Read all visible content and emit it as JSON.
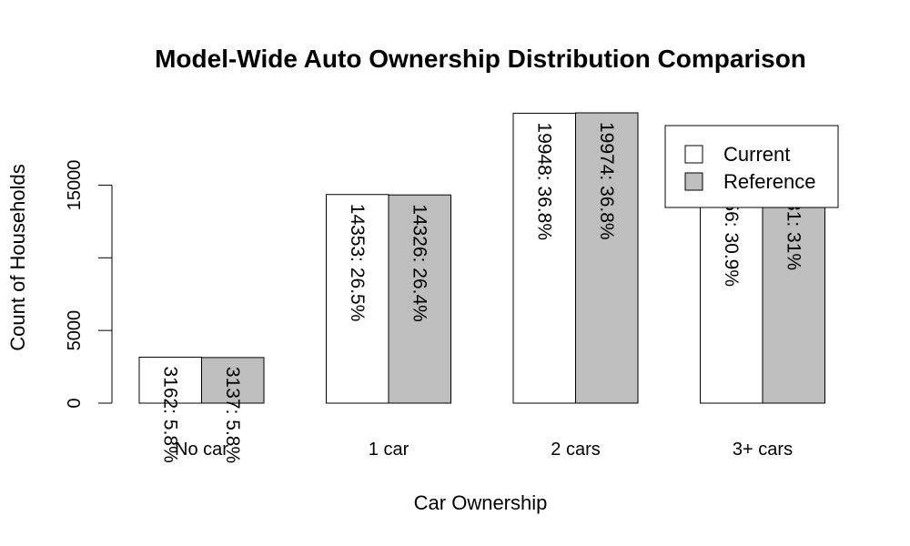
{
  "chart_data": {
    "type": "bar",
    "title": "Model-Wide Auto Ownership Distribution Comparison",
    "xlabel": "Car Ownership",
    "ylabel": "Count of Households",
    "categories": [
      "No car",
      "1 car",
      "2 cars",
      "3+ cars"
    ],
    "series": [
      {
        "name": "Current",
        "color": "#ffffff",
        "values": [
          3162,
          14353,
          19948,
          16756
        ],
        "labels": [
          "3162:  5.8%",
          "14353:  26.5%",
          "19948:  36.8%",
          "16756:  30.9%"
        ]
      },
      {
        "name": "Reference",
        "color": "#bebebe",
        "values": [
          3137,
          14326,
          19974,
          16781
        ],
        "labels": [
          "3137:  5.8%",
          "14326:  26.4%",
          "19974:  36.8%",
          "16781:  31%"
        ]
      }
    ],
    "yticks": [
      0,
      5000,
      15000
    ],
    "ylim": [
      0,
      19974
    ],
    "legend_position": "top-right",
    "grid": false
  }
}
